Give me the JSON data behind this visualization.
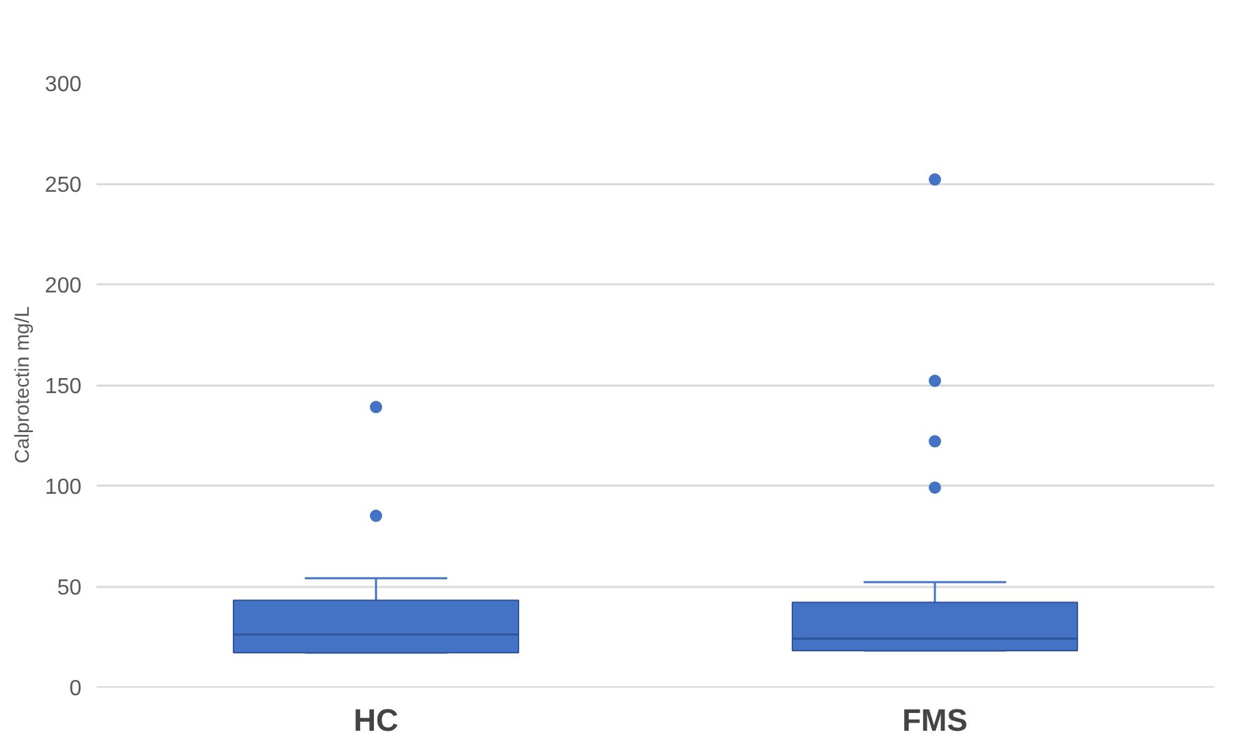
{
  "chart_data": {
    "type": "box",
    "ylabel": "Calprotectin mg/L",
    "categories": [
      "HC",
      "FMS"
    ],
    "color": "#4472c4",
    "boxes": [
      {
        "low": 17,
        "q1": 17,
        "median": 26,
        "q3": 43,
        "high": 54,
        "outliers": [
          85,
          139
        ]
      },
      {
        "low": 18,
        "q1": 18,
        "median": 24,
        "q3": 42,
        "high": 52,
        "outliers": [
          99,
          122,
          152,
          252
        ]
      }
    ],
    "ylim": [
      0,
      300
    ],
    "yticks": [
      0,
      50,
      100,
      150,
      200,
      250,
      300
    ],
    "grid": "y"
  }
}
